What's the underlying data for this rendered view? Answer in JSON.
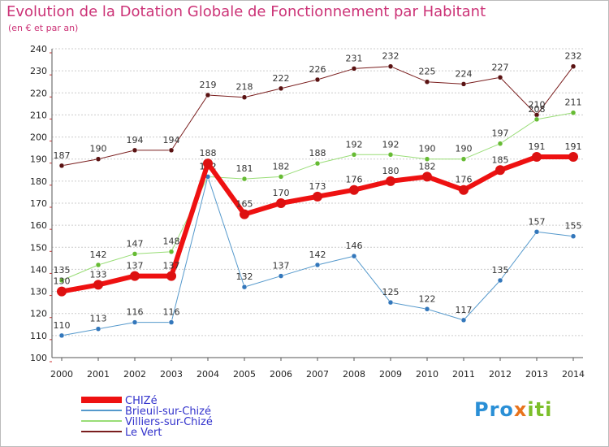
{
  "title": "Evolution de la Dotation Globale de Fonctionnement par Habitant",
  "subtitle": "(en € et par an)",
  "logo": {
    "part1": "Pro",
    "part2": "x",
    "part3": "iti"
  },
  "colors": {
    "title": "#cc3377",
    "grid": "#cccccc",
    "legend_text": "#3333cc"
  },
  "chart_data": {
    "type": "line",
    "x": [
      2000,
      2001,
      2002,
      2003,
      2004,
      2005,
      2006,
      2007,
      2008,
      2009,
      2010,
      2011,
      2012,
      2013,
      2014
    ],
    "ylim": [
      100,
      240
    ],
    "yticks": [
      100,
      110,
      120,
      130,
      140,
      150,
      160,
      170,
      180,
      190,
      200,
      210,
      220,
      230,
      240
    ],
    "grid": "horizontal",
    "legend_position": "bottom-left",
    "series": [
      {
        "name": "Le Vert",
        "color": "#7a1e1e",
        "marker": "#5a1212",
        "width": 1,
        "values": [
          187,
          190,
          194,
          194,
          219,
          218,
          222,
          226,
          231,
          232,
          225,
          224,
          227,
          210,
          232
        ]
      },
      {
        "name": "Villiers-sur-Chizé",
        "color": "#99dd77",
        "marker": "#66bb33",
        "width": 1,
        "values": [
          135,
          142,
          147,
          148,
          182,
          181,
          182,
          188,
          192,
          192,
          190,
          190,
          197,
          208,
          211
        ]
      },
      {
        "name": "Brieuil-sur-Chizé",
        "color": "#5599cc",
        "marker": "#3377bb",
        "width": 1,
        "values": [
          110,
          113,
          116,
          116,
          182,
          132,
          137,
          142,
          146,
          125,
          122,
          117,
          135,
          157,
          155
        ]
      },
      {
        "name": "CHIZé",
        "color": "#ee1111",
        "marker": "#dd1111",
        "width": 6,
        "values": [
          130,
          133,
          137,
          137,
          188,
          165,
          170,
          173,
          176,
          180,
          182,
          176,
          185,
          191,
          191
        ]
      }
    ],
    "legend_order": [
      "CHIZé",
      "Brieuil-sur-Chizé",
      "Villiers-sur-Chizé",
      "Le Vert"
    ]
  }
}
